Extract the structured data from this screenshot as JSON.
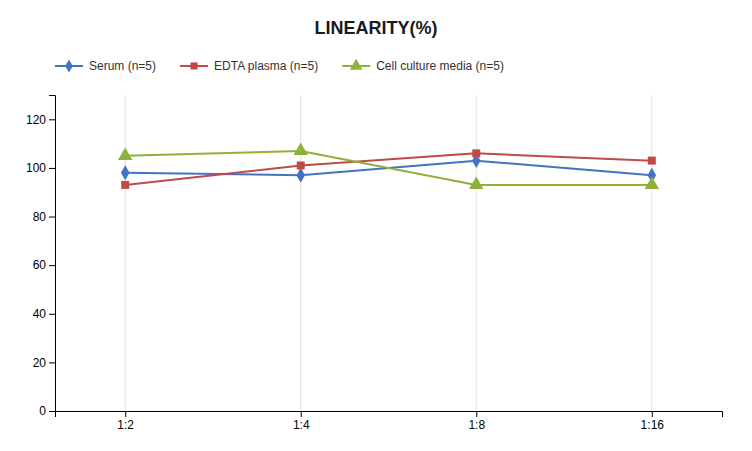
{
  "chart_data": {
    "type": "line",
    "title": "LINEARITY(%)",
    "categories": [
      "1:2",
      "1:4",
      "1:8",
      "1:16"
    ],
    "series": [
      {
        "name": "Serum (n=5)",
        "color": "#4472C4",
        "marker": "diamond",
        "values": [
          98,
          97,
          103,
          97
        ]
      },
      {
        "name": "EDTA plasma (n=5)",
        "color": "#BE4B48",
        "marker": "square",
        "values": [
          93,
          101,
          106,
          103
        ]
      },
      {
        "name": "Cell culture media (n=5)",
        "color": "#8EB13A",
        "marker": "triangle",
        "values": [
          105,
          107,
          93,
          93
        ]
      }
    ],
    "ylim": [
      0,
      130
    ],
    "yticks": [
      0,
      20,
      40,
      60,
      80,
      100,
      120
    ],
    "grid": "x",
    "legend": "top"
  }
}
